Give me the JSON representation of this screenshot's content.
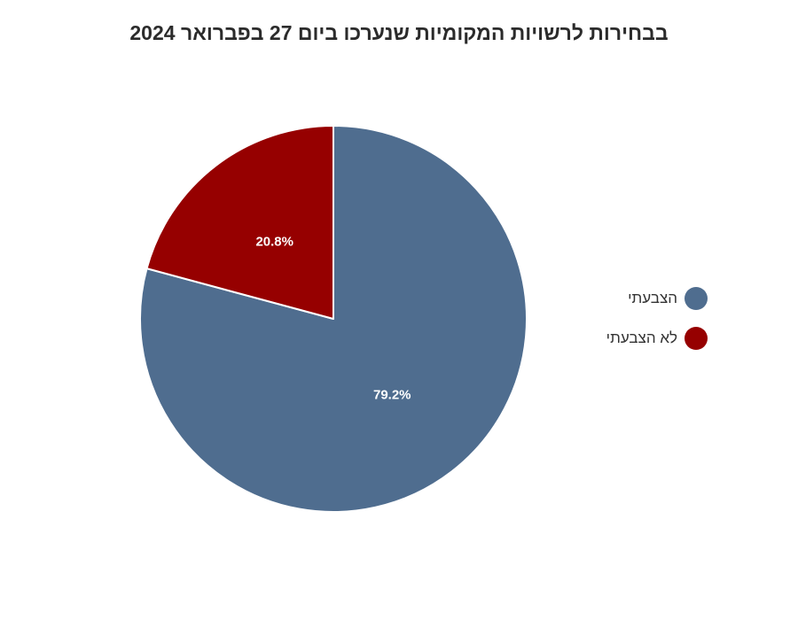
{
  "chart_data": {
    "type": "pie",
    "title": "בבחירות לרשויות המקומיות שנערכו ביום 27 בפברואר 2024",
    "slices": [
      {
        "label": "הצבעתי",
        "value": 79.2,
        "display": "79.2%",
        "color": "#4f6d8f"
      },
      {
        "label": "לא הצבעתי",
        "value": 20.8,
        "display": "20.8%",
        "color": "#960000"
      }
    ],
    "legend_position": "right",
    "start_angle_deg": 0,
    "direction": "clockwise"
  }
}
